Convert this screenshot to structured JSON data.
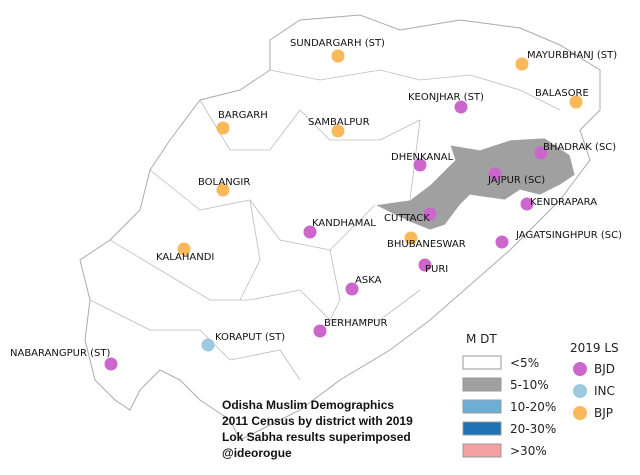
{
  "title_lines": [
    "Odisha Muslim Demographics",
    "2011 Census by district with 2019",
    "Lok Sabha results superimposed",
    "@ideorogue"
  ],
  "shade_legend": {
    "title": "M DT",
    "items": [
      {
        "label": "<5%",
        "color": "#ffffff"
      },
      {
        "label": "5-10%",
        "color": "#a0a0a0"
      },
      {
        "label": "10-20%",
        "color": "#6baed6"
      },
      {
        "label": "20-30%",
        "color": "#2171b5"
      },
      {
        "label": ">30%",
        "color": "#f4a0a0"
      }
    ]
  },
  "party_legend": {
    "title": "2019 LS",
    "items": [
      {
        "label": "BJD",
        "color": "#cc66cc"
      },
      {
        "label": "INC",
        "color": "#9ecae1"
      },
      {
        "label": "BJP",
        "color": "#f9b95b"
      }
    ]
  },
  "constituencies": [
    {
      "name": "SUNDARGARH (ST)",
      "party": "BJP"
    },
    {
      "name": "MAYURBHANJ (ST)",
      "party": "BJP"
    },
    {
      "name": "BALASORE",
      "party": "BJP"
    },
    {
      "name": "KEONJHAR (ST)",
      "party": "BJD"
    },
    {
      "name": "BARGARH",
      "party": "BJP"
    },
    {
      "name": "SAMBALPUR",
      "party": "BJP"
    },
    {
      "name": "BHADRAK (SC)",
      "party": "BJD"
    },
    {
      "name": "DHENKANAL",
      "party": "BJD"
    },
    {
      "name": "JAJPUR (SC)",
      "party": "BJD"
    },
    {
      "name": "BOLANGIR",
      "party": "BJP"
    },
    {
      "name": "KENDRAPARA",
      "party": "BJD"
    },
    {
      "name": "CUTTACK",
      "party": "BJD"
    },
    {
      "name": "KANDHAMAL",
      "party": "BJD"
    },
    {
      "name": "BHUBANESWAR",
      "party": "BJP"
    },
    {
      "name": "JAGATSINGHPUR (SC)",
      "party": "BJD"
    },
    {
      "name": "KALAHANDI",
      "party": "BJP"
    },
    {
      "name": "PURI",
      "party": "BJD"
    },
    {
      "name": "ASKA",
      "party": "BJD"
    },
    {
      "name": "BERHAMPUR",
      "party": "BJD"
    },
    {
      "name": "KORAPUT (ST)",
      "party": "INC"
    },
    {
      "name": "NABARANGPUR (ST)",
      "party": "BJD"
    }
  ]
}
